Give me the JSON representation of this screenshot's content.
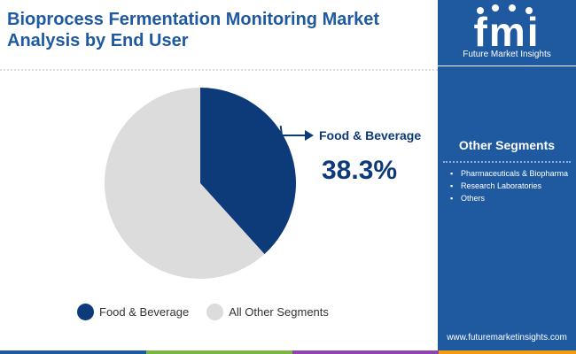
{
  "title": "Bioprocess Fermentation Monitoring Market Analysis by End User",
  "logo": {
    "text": "Future Market Insights",
    "mark": "fmi"
  },
  "sidebar": {
    "heading": "Other Segments",
    "items": [
      "Pharmaceuticals & Biopharma",
      "Research Laboratories",
      "Others"
    ],
    "website": "www.futuremarketinsights.com"
  },
  "callout": {
    "label": "Food & Beverage",
    "value": "38.3%"
  },
  "colors": {
    "brand": "#1f5aa0",
    "highlight": "#0d3b7a",
    "rest": "#dcdcdc"
  },
  "chart_data": {
    "type": "pie",
    "slices": [
      {
        "label": "Food & Beverage",
        "value": 38.3,
        "color": "#0d3b7a"
      },
      {
        "label": "All Other Segments",
        "value": 61.7,
        "color": "#dcdcdc"
      }
    ],
    "legend": [
      "Food & Beverage",
      "All Other Segments"
    ],
    "legend_position": "bottom"
  }
}
